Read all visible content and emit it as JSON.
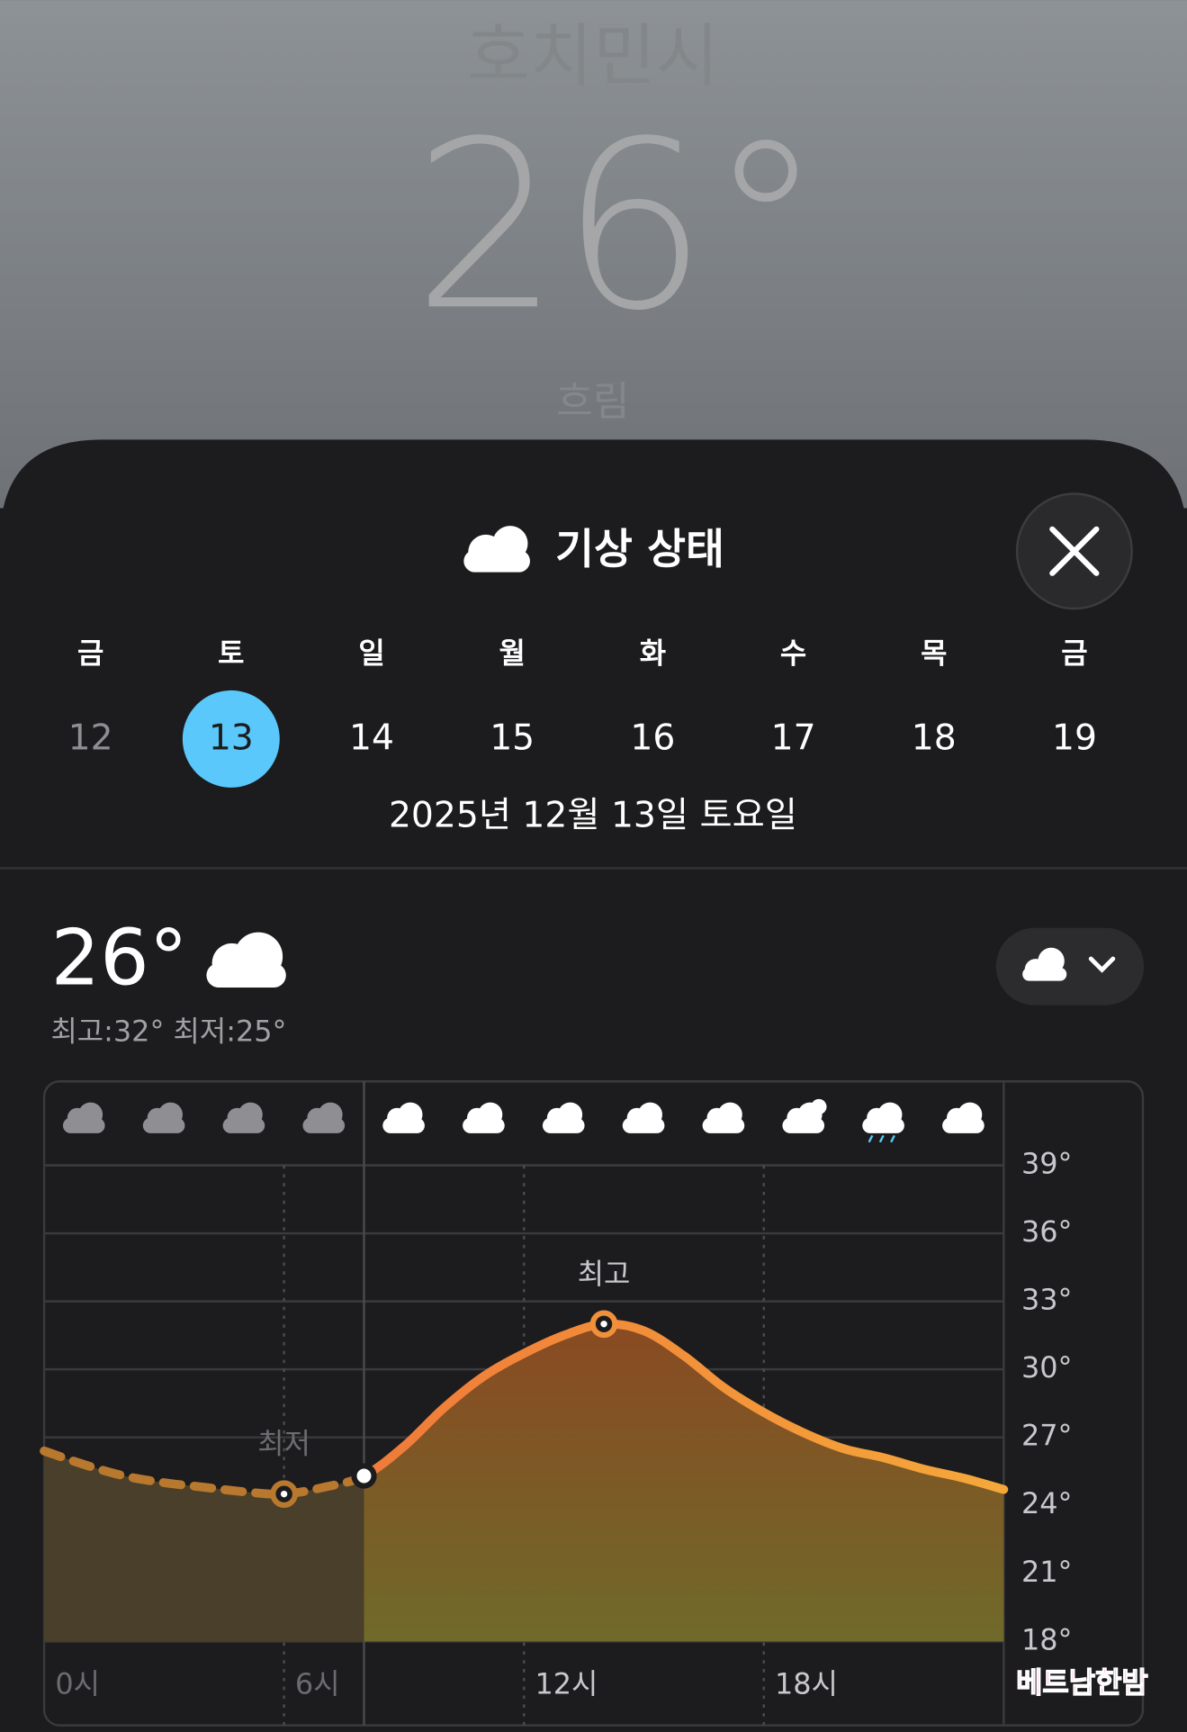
{
  "header": {
    "city": "호치민시",
    "temperature": "26°",
    "condition": "흐림"
  },
  "sheet": {
    "title": "기상 상태",
    "days": [
      {
        "weekday": "금",
        "date": "12"
      },
      {
        "weekday": "토",
        "date": "13"
      },
      {
        "weekday": "일",
        "date": "14"
      },
      {
        "weekday": "월",
        "date": "15"
      },
      {
        "weekday": "화",
        "date": "16"
      },
      {
        "weekday": "수",
        "date": "17"
      },
      {
        "weekday": "목",
        "date": "18"
      },
      {
        "weekday": "금",
        "date": "19"
      }
    ],
    "selected_day": 1,
    "full_date": "2025년 12월 13일 토요일",
    "current_temp": "26°",
    "high_low": "최고:32° 최저:25°"
  },
  "chart_data": {
    "type": "line",
    "x": [
      0,
      1,
      2,
      3,
      4,
      5,
      6,
      7,
      8,
      9,
      10,
      11,
      12,
      13,
      14,
      15,
      16,
      17,
      18,
      19,
      20,
      21,
      22,
      23,
      24
    ],
    "values": [
      26.4,
      25.8,
      25.3,
      25.0,
      24.8,
      24.6,
      24.5,
      24.8,
      25.3,
      26.6,
      28.3,
      29.7,
      30.7,
      31.5,
      32.0,
      31.7,
      30.6,
      29.2,
      28.1,
      27.2,
      26.5,
      26.1,
      25.6,
      25.2,
      24.7
    ],
    "current_x": 8,
    "xlim": [
      0,
      24
    ],
    "xticks": [
      {
        "value": 0,
        "label": "0시"
      },
      {
        "value": 6,
        "label": "6시"
      },
      {
        "value": 12,
        "label": "12시"
      },
      {
        "value": 18,
        "label": "18시"
      }
    ],
    "ylim": [
      18,
      39
    ],
    "yticks": [
      {
        "value": 39,
        "label": "39°"
      },
      {
        "value": 36,
        "label": "36°"
      },
      {
        "value": 33,
        "label": "33°"
      },
      {
        "value": 30,
        "label": "30°"
      },
      {
        "value": 27,
        "label": "27°"
      },
      {
        "value": 24,
        "label": "24°"
      },
      {
        "value": 21,
        "label": "21°"
      },
      {
        "value": 18,
        "label": "18°"
      }
    ],
    "annotations": [
      {
        "text": "최저",
        "index": 6
      },
      {
        "text": "최고",
        "index": 14
      }
    ],
    "color": "#f0903a",
    "grid": true
  },
  "watermark": "베트남한밤"
}
